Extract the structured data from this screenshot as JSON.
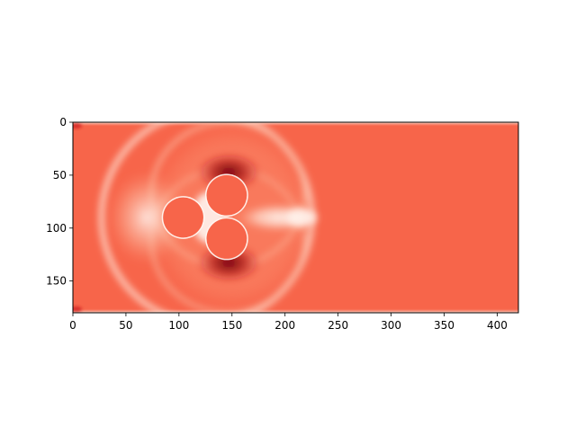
{
  "chart_data": {
    "type": "heatmap",
    "title": "",
    "xlabel": "",
    "ylabel": "",
    "colormap": "Reds",
    "xlim": [
      0,
      420
    ],
    "ylim": [
      180,
      0
    ],
    "xticks": [
      0,
      50,
      100,
      150,
      200,
      250,
      300,
      350,
      400
    ],
    "yticks": [
      0,
      50,
      100,
      150
    ],
    "background_value_color": "#f7654a",
    "obstacles": [
      {
        "name": "cylinder-front",
        "cx": 104,
        "cy": 90,
        "r": 19
      },
      {
        "name": "cylinder-top",
        "cx": 145,
        "cy": 69,
        "r": 19
      },
      {
        "name": "cylinder-bottom",
        "cx": 145,
        "cy": 110,
        "r": 19
      }
    ]
  }
}
